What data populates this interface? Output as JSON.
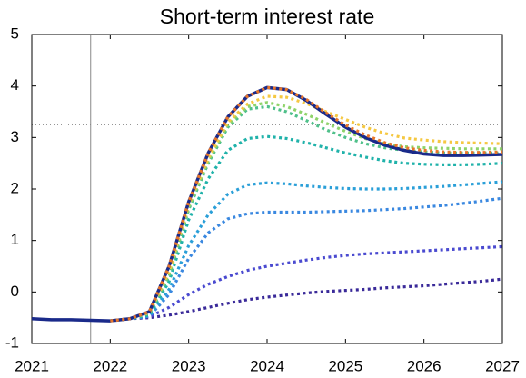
{
  "chart_data": {
    "type": "line",
    "title": "Short-term interest rate",
    "x": [
      2021,
      2021.25,
      2021.5,
      2021.75,
      2022,
      2022.25,
      2022.5,
      2022.75,
      2023,
      2023.25,
      2023.5,
      2023.75,
      2024,
      2024.25,
      2024.5,
      2024.75,
      2025,
      2025.25,
      2025.5,
      2025.75,
      2026,
      2026.25,
      2026.5,
      2026.75,
      2027
    ],
    "xlim": [
      2021,
      2027
    ],
    "xticks": [
      2021,
      2022,
      2023,
      2024,
      2025,
      2026,
      2027
    ],
    "ylim": [
      -1,
      5
    ],
    "yticks": [
      -1,
      0,
      1,
      2,
      3,
      4,
      5
    ],
    "vline": 2021.75,
    "hline": 3.25,
    "series": [
      {
        "color": "#3a2a99",
        "style": "dotted",
        "values": [
          null,
          null,
          null,
          null,
          -0.56,
          -0.52,
          -0.5,
          -0.45,
          -0.38,
          -0.3,
          -0.22,
          -0.15,
          -0.1,
          -0.06,
          -0.02,
          0.01,
          0.03,
          0.05,
          0.08,
          0.1,
          0.12,
          0.15,
          0.18,
          0.21,
          0.25
        ]
      },
      {
        "color": "#4a4ad0",
        "style": "dotted",
        "values": [
          null,
          null,
          null,
          null,
          -0.56,
          -0.52,
          -0.48,
          -0.3,
          -0.05,
          0.15,
          0.3,
          0.42,
          0.5,
          0.56,
          0.62,
          0.67,
          0.71,
          0.74,
          0.76,
          0.78,
          0.8,
          0.82,
          0.84,
          0.86,
          0.88
        ]
      },
      {
        "color": "#3a88e0",
        "style": "dotted",
        "values": [
          null,
          null,
          null,
          null,
          -0.56,
          -0.52,
          -0.47,
          -0.05,
          0.65,
          1.15,
          1.42,
          1.52,
          1.55,
          1.55,
          1.55,
          1.56,
          1.57,
          1.58,
          1.6,
          1.62,
          1.65,
          1.68,
          1.72,
          1.77,
          1.82
        ]
      },
      {
        "color": "#2a9fd8",
        "style": "dotted",
        "values": [
          null,
          null,
          null,
          null,
          -0.56,
          -0.52,
          -0.46,
          0.05,
          0.9,
          1.5,
          1.9,
          2.08,
          2.12,
          2.1,
          2.06,
          2.03,
          2.01,
          2.0,
          2.0,
          2.01,
          2.03,
          2.05,
          2.08,
          2.11,
          2.14
        ]
      },
      {
        "color": "#20b2aa",
        "style": "dotted",
        "values": [
          null,
          null,
          null,
          null,
          -0.56,
          -0.52,
          -0.44,
          0.2,
          1.4,
          2.2,
          2.75,
          2.98,
          3.02,
          2.98,
          2.9,
          2.8,
          2.7,
          2.62,
          2.55,
          2.5,
          2.48,
          2.47,
          2.47,
          2.48,
          2.5
        ]
      },
      {
        "color": "#4fc08a",
        "style": "dotted",
        "values": [
          null,
          null,
          null,
          null,
          -0.56,
          -0.52,
          -0.42,
          0.3,
          1.6,
          2.5,
          3.2,
          3.55,
          3.6,
          3.5,
          3.33,
          3.15,
          3.0,
          2.88,
          2.8,
          2.75,
          2.72,
          2.7,
          2.7,
          2.7,
          2.7
        ]
      },
      {
        "color": "#8ed36a",
        "style": "dotted",
        "values": [
          null,
          null,
          null,
          null,
          -0.56,
          -0.52,
          -0.4,
          0.35,
          1.65,
          2.55,
          3.25,
          3.6,
          3.68,
          3.6,
          3.45,
          3.28,
          3.12,
          2.98,
          2.88,
          2.82,
          2.8,
          2.79,
          2.78,
          2.78,
          2.78
        ]
      },
      {
        "color": "#f5c842",
        "style": "dotted",
        "values": [
          null,
          null,
          null,
          null,
          -0.56,
          -0.52,
          -0.4,
          0.4,
          1.7,
          2.6,
          3.3,
          3.65,
          3.8,
          3.78,
          3.66,
          3.5,
          3.35,
          3.2,
          3.08,
          2.99,
          2.95,
          2.92,
          2.9,
          2.89,
          2.88
        ]
      },
      {
        "color": "#1a2a8a",
        "style": "solid",
        "values": [
          -0.52,
          -0.54,
          -0.54,
          -0.55,
          -0.56,
          -0.52,
          -0.38,
          0.5,
          1.75,
          2.7,
          3.4,
          3.8,
          3.97,
          3.93,
          3.72,
          3.45,
          3.2,
          3.0,
          2.85,
          2.75,
          2.68,
          2.65,
          2.65,
          2.66,
          2.67
        ]
      },
      {
        "color": "#e8762a",
        "style": "dotted",
        "values": [
          null,
          null,
          null,
          null,
          -0.56,
          -0.52,
          -0.38,
          0.5,
          1.75,
          2.7,
          3.4,
          3.8,
          3.97,
          3.93,
          3.74,
          3.48,
          3.24,
          3.05,
          2.9,
          2.8,
          2.75,
          2.72,
          2.71,
          2.71,
          2.72
        ]
      }
    ]
  }
}
